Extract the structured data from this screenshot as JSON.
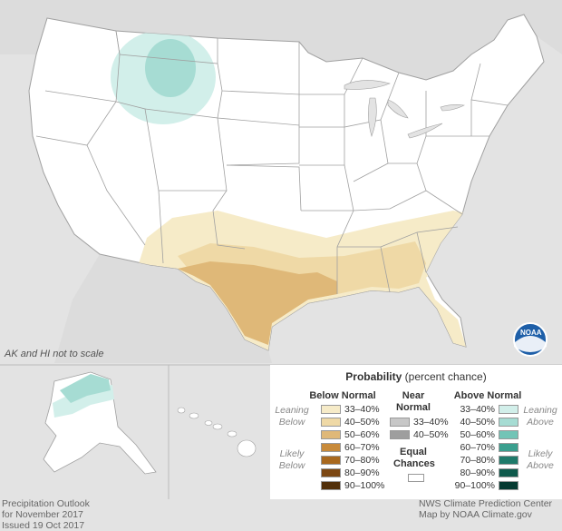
{
  "map_note": "AK and HI not to scale",
  "legend": {
    "title_bold": "Probability",
    "title_rest": " (percent chance)",
    "below_header": "Below Normal",
    "near_header": "Near Normal",
    "above_header": "Above Normal",
    "leaning_below": "Leaning Below",
    "likely_below": "Likely Below",
    "leaning_above": "Leaning Above",
    "likely_above": "Likely Above",
    "equal_chances": "Equal Chances",
    "below": [
      {
        "label": "33–40%",
        "color": "#f6ebc8"
      },
      {
        "label": "40–50%",
        "color": "#efd9a6"
      },
      {
        "label": "50–60%",
        "color": "#dfb878"
      },
      {
        "label": "60–70%",
        "color": "#c88a3a"
      },
      {
        "label": "70–80%",
        "color": "#a8681e"
      },
      {
        "label": "80–90%",
        "color": "#7c4712"
      },
      {
        "label": "90–100%",
        "color": "#52300a"
      }
    ],
    "near": [
      {
        "label": "33–40%",
        "color": "#c7c7c7"
      },
      {
        "label": "40–50%",
        "color": "#9e9e9e"
      }
    ],
    "above": [
      {
        "label": "33–40%",
        "color": "#d2efea"
      },
      {
        "label": "40–50%",
        "color": "#a6dcd3"
      },
      {
        "label": "50–60%",
        "color": "#72c4b6"
      },
      {
        "label": "60–70%",
        "color": "#3a9f8e"
      },
      {
        "label": "70–80%",
        "color": "#1f7a6a"
      },
      {
        "label": "80–90%",
        "color": "#0f5a4c"
      },
      {
        "label": "90–100%",
        "color": "#063a31"
      }
    ]
  },
  "footer_left": [
    "Precipitation Outlook",
    "for November 2017",
    "Issued 19 Oct 2017"
  ],
  "footer_right": [
    "NWS Climate Prediction Center",
    "Map by NOAA Climate.gov"
  ],
  "logo_text": "NOAA",
  "colors": {
    "background": "#e3e3e3",
    "land": "#ffffff",
    "border": "#a0a0a0",
    "above_light": "#d2efea",
    "above_mid": "#a6dcd3",
    "below_light": "#f6ebc8",
    "below_mid": "#efd9a6",
    "below_strong": "#dfb878"
  }
}
